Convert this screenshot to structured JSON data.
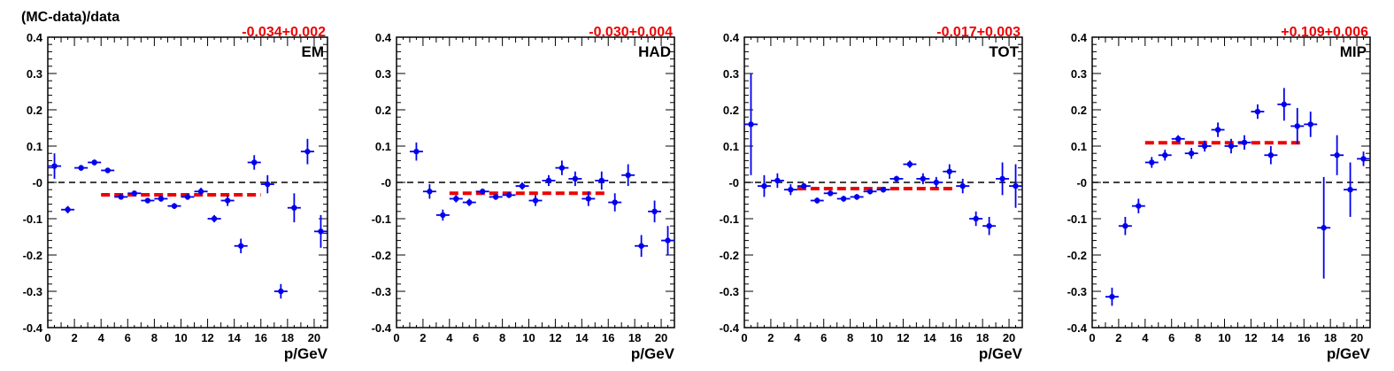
{
  "figure": {
    "ylabel": "(MC-data)/data",
    "xlabel": "p/GeV"
  },
  "colors": {
    "points": "#0000ee",
    "fit": "#ee0000",
    "zero_line": "#000000",
    "fit_text": "#ee0000"
  },
  "chart_data": [
    {
      "type": "scatter",
      "label": "EM",
      "fit_text": "-0.034+0.002",
      "fit": {
        "value": -0.034,
        "x_range": [
          4,
          16
        ]
      },
      "xlabel": "p/GeV",
      "xlim": [
        0,
        21
      ],
      "ylim": [
        -0.4,
        0.4
      ],
      "x_ticks": [
        "0",
        "2",
        "4",
        "6",
        "8",
        "10",
        "12",
        "14",
        "16",
        "18",
        "20"
      ],
      "y_ticks": [
        "-0.4",
        "-0.3",
        "-0.2",
        "-0.1",
        "-0",
        "0.1",
        "0.2",
        "0.3",
        "0.4"
      ],
      "points": [
        {
          "x": 0.5,
          "y": 0.045,
          "err": 0.035
        },
        {
          "x": 1.5,
          "y": -0.075,
          "err": 0.01
        },
        {
          "x": 2.5,
          "y": 0.04,
          "err": 0.008
        },
        {
          "x": 3.5,
          "y": 0.055,
          "err": 0.008
        },
        {
          "x": 4.5,
          "y": 0.033,
          "err": 0.006
        },
        {
          "x": 5.5,
          "y": -0.04,
          "err": 0.006
        },
        {
          "x": 6.5,
          "y": -0.03,
          "err": 0.006
        },
        {
          "x": 7.5,
          "y": -0.05,
          "err": 0.006
        },
        {
          "x": 8.5,
          "y": -0.045,
          "err": 0.008
        },
        {
          "x": 9.5,
          "y": -0.065,
          "err": 0.008
        },
        {
          "x": 10.5,
          "y": -0.04,
          "err": 0.008
        },
        {
          "x": 11.5,
          "y": -0.025,
          "err": 0.01
        },
        {
          "x": 12.5,
          "y": -0.1,
          "err": 0.01
        },
        {
          "x": 13.5,
          "y": -0.05,
          "err": 0.015
        },
        {
          "x": 14.5,
          "y": -0.175,
          "err": 0.02
        },
        {
          "x": 15.5,
          "y": 0.055,
          "err": 0.02
        },
        {
          "x": 16.5,
          "y": -0.005,
          "err": 0.025
        },
        {
          "x": 17.5,
          "y": -0.3,
          "err": 0.02
        },
        {
          "x": 18.5,
          "y": -0.07,
          "err": 0.04
        },
        {
          "x": 19.5,
          "y": 0.085,
          "err": 0.035
        },
        {
          "x": 20.5,
          "y": -0.135,
          "err": 0.045
        }
      ]
    },
    {
      "type": "scatter",
      "label": "HAD",
      "fit_text": "-0.030+0.004",
      "fit": {
        "value": -0.03,
        "x_range": [
          4,
          16
        ]
      },
      "xlabel": "p/GeV",
      "xlim": [
        0,
        21
      ],
      "ylim": [
        -0.4,
        0.4
      ],
      "x_ticks": [
        "0",
        "2",
        "4",
        "6",
        "8",
        "10",
        "12",
        "14",
        "16",
        "18",
        "20"
      ],
      "y_ticks": [
        "-0.4",
        "-0.3",
        "-0.2",
        "-0.1",
        "-0",
        "0.1",
        "0.2",
        "0.3",
        "0.4"
      ],
      "points": [
        {
          "x": 1.5,
          "y": 0.085,
          "err": 0.025
        },
        {
          "x": 2.5,
          "y": -0.025,
          "err": 0.02
        },
        {
          "x": 3.5,
          "y": -0.09,
          "err": 0.015
        },
        {
          "x": 4.5,
          "y": -0.045,
          "err": 0.01
        },
        {
          "x": 5.5,
          "y": -0.055,
          "err": 0.01
        },
        {
          "x": 6.5,
          "y": -0.025,
          "err": 0.008
        },
        {
          "x": 7.5,
          "y": -0.04,
          "err": 0.008
        },
        {
          "x": 8.5,
          "y": -0.035,
          "err": 0.008
        },
        {
          "x": 9.5,
          "y": -0.01,
          "err": 0.01
        },
        {
          "x": 10.5,
          "y": -0.05,
          "err": 0.015
        },
        {
          "x": 11.5,
          "y": 0.005,
          "err": 0.015
        },
        {
          "x": 12.5,
          "y": 0.04,
          "err": 0.02
        },
        {
          "x": 13.5,
          "y": 0.01,
          "err": 0.02
        },
        {
          "x": 14.5,
          "y": -0.045,
          "err": 0.02
        },
        {
          "x": 15.5,
          "y": 0.005,
          "err": 0.025
        },
        {
          "x": 16.5,
          "y": -0.055,
          "err": 0.025
        },
        {
          "x": 17.5,
          "y": 0.02,
          "err": 0.03
        },
        {
          "x": 18.5,
          "y": -0.175,
          "err": 0.03
        },
        {
          "x": 19.5,
          "y": -0.08,
          "err": 0.03
        },
        {
          "x": 20.5,
          "y": -0.16,
          "err": 0.04
        }
      ]
    },
    {
      "type": "scatter",
      "label": "TOT",
      "fit_text": "-0.017+0.003",
      "fit": {
        "value": -0.017,
        "x_range": [
          4,
          16
        ]
      },
      "xlabel": "p/GeV",
      "xlim": [
        0,
        21
      ],
      "ylim": [
        -0.4,
        0.4
      ],
      "x_ticks": [
        "0",
        "2",
        "4",
        "6",
        "8",
        "10",
        "12",
        "14",
        "16",
        "18",
        "20"
      ],
      "y_ticks": [
        "-0.4",
        "-0.3",
        "-0.2",
        "-0.1",
        "-0",
        "0.1",
        "0.2",
        "0.3",
        "0.4"
      ],
      "points": [
        {
          "x": 0.5,
          "y": 0.16,
          "err": 0.14
        },
        {
          "x": 1.5,
          "y": -0.01,
          "err": 0.03
        },
        {
          "x": 2.5,
          "y": 0.005,
          "err": 0.02
        },
        {
          "x": 3.5,
          "y": -0.02,
          "err": 0.015
        },
        {
          "x": 4.5,
          "y": -0.01,
          "err": 0.008
        },
        {
          "x": 5.5,
          "y": -0.05,
          "err": 0.008
        },
        {
          "x": 6.5,
          "y": -0.03,
          "err": 0.008
        },
        {
          "x": 7.5,
          "y": -0.045,
          "err": 0.008
        },
        {
          "x": 8.5,
          "y": -0.04,
          "err": 0.008
        },
        {
          "x": 9.5,
          "y": -0.025,
          "err": 0.008
        },
        {
          "x": 10.5,
          "y": -0.02,
          "err": 0.008
        },
        {
          "x": 11.5,
          "y": 0.01,
          "err": 0.008
        },
        {
          "x": 12.5,
          "y": 0.05,
          "err": 0.01
        },
        {
          "x": 13.5,
          "y": 0.01,
          "err": 0.015
        },
        {
          "x": 14.5,
          "y": 0.0,
          "err": 0.015
        },
        {
          "x": 15.5,
          "y": 0.03,
          "err": 0.02
        },
        {
          "x": 16.5,
          "y": -0.01,
          "err": 0.02
        },
        {
          "x": 17.5,
          "y": -0.1,
          "err": 0.02
        },
        {
          "x": 18.5,
          "y": -0.12,
          "err": 0.025
        },
        {
          "x": 19.5,
          "y": 0.01,
          "err": 0.045
        },
        {
          "x": 20.5,
          "y": -0.01,
          "err": 0.06
        }
      ]
    },
    {
      "type": "scatter",
      "label": "MIP",
      "fit_text": "+0.109+0.006",
      "fit": {
        "value": 0.109,
        "x_range": [
          4,
          16
        ]
      },
      "xlabel": "p/GeV",
      "xlim": [
        0,
        21
      ],
      "ylim": [
        -0.4,
        0.4
      ],
      "x_ticks": [
        "0",
        "2",
        "4",
        "6",
        "8",
        "10",
        "12",
        "14",
        "16",
        "18",
        "20"
      ],
      "y_ticks": [
        "-0.4",
        "-0.3",
        "-0.2",
        "-0.1",
        "-0",
        "0.1",
        "0.2",
        "0.3",
        "0.4"
      ],
      "points": [
        {
          "x": 1.5,
          "y": -0.315,
          "err": 0.025
        },
        {
          "x": 2.5,
          "y": -0.12,
          "err": 0.025
        },
        {
          "x": 3.5,
          "y": -0.065,
          "err": 0.02
        },
        {
          "x": 4.5,
          "y": 0.055,
          "err": 0.015
        },
        {
          "x": 5.5,
          "y": 0.075,
          "err": 0.015
        },
        {
          "x": 6.5,
          "y": 0.12,
          "err": 0.01
        },
        {
          "x": 7.5,
          "y": 0.08,
          "err": 0.015
        },
        {
          "x": 8.5,
          "y": 0.1,
          "err": 0.015
        },
        {
          "x": 9.5,
          "y": 0.145,
          "err": 0.02
        },
        {
          "x": 10.5,
          "y": 0.1,
          "err": 0.02
        },
        {
          "x": 11.5,
          "y": 0.11,
          "err": 0.02
        },
        {
          "x": 12.5,
          "y": 0.195,
          "err": 0.02
        },
        {
          "x": 13.5,
          "y": 0.075,
          "err": 0.025
        },
        {
          "x": 14.5,
          "y": 0.215,
          "err": 0.045
        },
        {
          "x": 15.5,
          "y": 0.155,
          "err": 0.05
        },
        {
          "x": 16.5,
          "y": 0.16,
          "err": 0.035
        },
        {
          "x": 17.5,
          "y": -0.125,
          "err": 0.14
        },
        {
          "x": 18.5,
          "y": 0.075,
          "err": 0.055
        },
        {
          "x": 19.5,
          "y": -0.02,
          "err": 0.075
        },
        {
          "x": 20.5,
          "y": 0.065,
          "err": 0.02
        }
      ]
    }
  ]
}
